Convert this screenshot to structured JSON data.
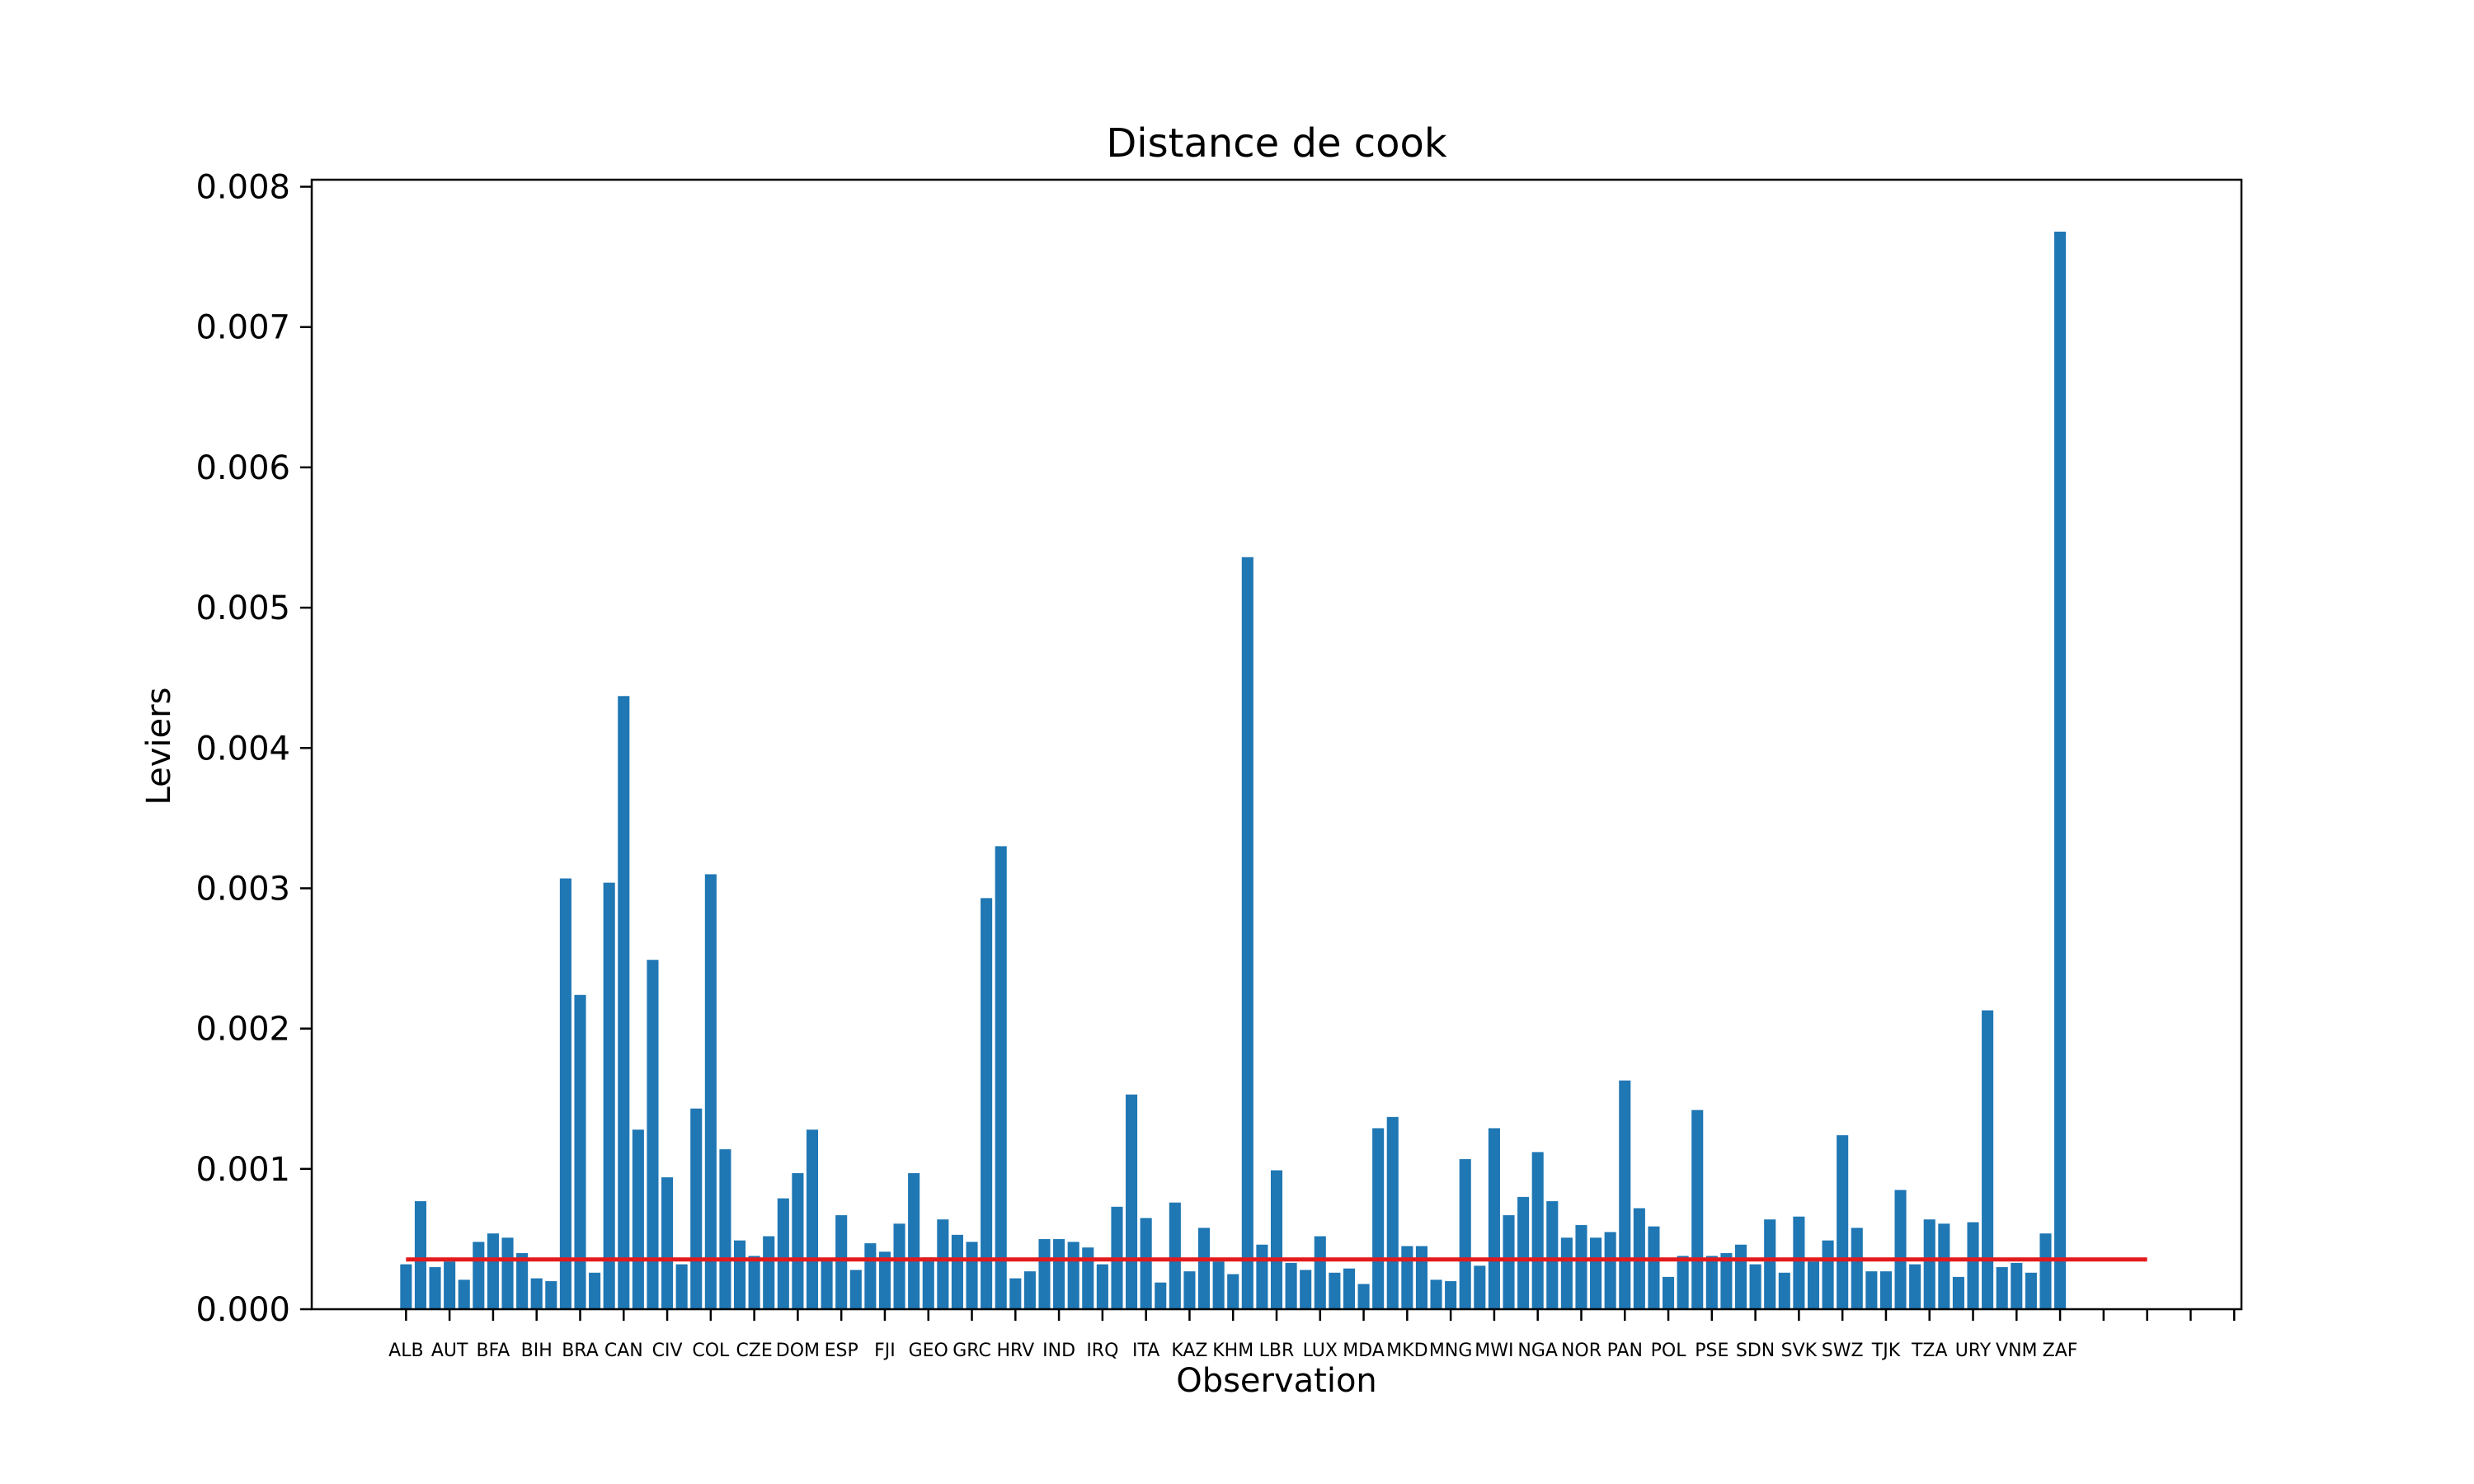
{
  "chart_data": {
    "type": "bar",
    "title": "Distance de cook",
    "xlabel": "Observation",
    "ylabel": "Leviers",
    "ylim": [
      0,
      0.00805
    ],
    "yticks": [
      0.0,
      0.001,
      0.002,
      0.003,
      0.004,
      0.005,
      0.006,
      0.007,
      0.008
    ],
    "ytick_labels": [
      "0.000",
      "0.001",
      "0.002",
      "0.003",
      "0.004",
      "0.005",
      "0.006",
      "0.007",
      "0.008"
    ],
    "xlim": [
      -6.5,
      126.5
    ],
    "x_ticks_major": [
      0,
      3,
      6,
      9,
      12,
      15,
      18,
      21,
      24,
      27,
      30,
      33,
      36,
      39,
      42,
      45,
      48,
      51,
      54,
      57,
      60,
      63,
      66,
      69,
      72,
      75,
      78,
      81,
      84,
      87,
      90,
      93,
      96,
      99,
      102,
      105,
      108,
      111,
      114,
      117,
      120,
      123,
      126
    ],
    "tick_labels": [
      "ALB",
      "AUT",
      "BFA",
      "BIH",
      "BRA",
      "CAN",
      "CIV",
      "COL",
      "CZE",
      "DOM",
      "ESP",
      "FJI",
      "GEO",
      "GRC",
      "HRV",
      "IND",
      "IRQ",
      "ITA",
      "KAZ",
      "KHM",
      "LBR",
      "LUX",
      "MDA",
      "MKD",
      "MNG",
      "MWI",
      "NGA",
      "NOR",
      "PAN",
      "POL",
      "PSE",
      "SDN",
      "SVK",
      "SWZ",
      "TJK",
      "TZA",
      "URY",
      "VNM",
      "ZAF",
      "",
      "",
      "",
      ""
    ],
    "threshold": {
      "value": 0.000355,
      "x_range": [
        0,
        120
      ],
      "color": "#e31a1c"
    },
    "bar_color": "#1f77b4",
    "values": [
      0.00032,
      0.00077,
      0.0003,
      0.00034,
      0.00021,
      0.00048,
      0.00054,
      0.00051,
      0.0004,
      0.00022,
      0.0002,
      0.00307,
      0.00224,
      0.00026,
      0.00304,
      0.00437,
      0.00128,
      0.00249,
      0.00094,
      0.00032,
      0.00143,
      0.0031,
      0.00114,
      0.00049,
      0.00038,
      0.00052,
      0.00079,
      0.00097,
      0.00128,
      0.00035,
      0.00067,
      0.00028,
      0.00047,
      0.00041,
      0.00061,
      0.00097,
      0.00037,
      0.00064,
      0.00053,
      0.00048,
      0.00293,
      0.0033,
      0.00022,
      0.00027,
      0.0005,
      0.0005,
      0.00048,
      0.00044,
      0.00032,
      0.00073,
      0.00153,
      0.00065,
      0.00019,
      0.00076,
      0.00027,
      0.00058,
      0.00034,
      0.00025,
      0.00536,
      0.00046,
      0.00099,
      0.00033,
      0.00028,
      0.00052,
      0.00026,
      0.00029,
      0.00018,
      0.00129,
      0.00137,
      0.00045,
      0.00045,
      0.00021,
      0.0002,
      0.00107,
      0.00031,
      0.00129,
      0.00067,
      0.0008,
      0.00112,
      0.00077,
      0.00051,
      0.0006,
      0.00051,
      0.00055,
      0.00163,
      0.00072,
      0.00059,
      0.00023,
      0.00038,
      0.00142,
      0.00038,
      0.0004,
      0.00046,
      0.00032,
      0.00064,
      0.00026,
      0.00066,
      0.00034,
      0.00049,
      0.00124,
      0.00058,
      0.00027,
      0.00027,
      0.00085,
      0.00032,
      0.00064,
      0.00061,
      0.00023,
      0.00062,
      0.00213,
      0.0003,
      0.00033,
      0.00026,
      0.00054,
      0.00768
    ]
  }
}
